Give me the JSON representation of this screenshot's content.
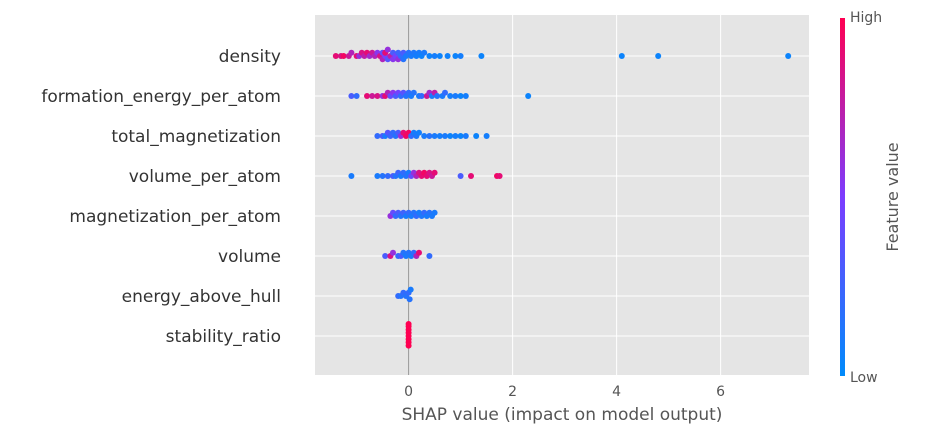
{
  "chart_data": {
    "type": "scatter",
    "subtype": "shap-beeswarm",
    "xlabel": "SHAP value (impact on model output)",
    "xlim": [
      -1.8,
      7.7
    ],
    "xticks": [
      0,
      2,
      4,
      6
    ],
    "grid": true,
    "colors": {
      "background": "#e5e5e5",
      "grid": "#ffffff",
      "low": "#008bfb",
      "high": "#ff0052",
      "zero_line": "#999999"
    },
    "colorbar": {
      "high_label": "High",
      "low_label": "Low",
      "title": "Feature value"
    },
    "features": [
      {
        "name": "density",
        "points": [
          [
            -1.4,
            0.9
          ],
          [
            -1.3,
            0.85
          ],
          [
            -1.25,
            0.95
          ],
          [
            -1.15,
            0.8
          ],
          [
            -1.1,
            0.7
          ],
          [
            -1.0,
            0.9
          ],
          [
            -0.95,
            0.6
          ],
          [
            -0.9,
            0.85
          ],
          [
            -0.85,
            0.75
          ],
          [
            -0.8,
            0.9
          ],
          [
            -0.75,
            0.65
          ],
          [
            -0.7,
            0.8
          ],
          [
            -0.65,
            0.7
          ],
          [
            -0.6,
            0.55
          ],
          [
            -0.55,
            0.85
          ],
          [
            -0.5,
            0.4
          ],
          [
            -0.5,
            0.7
          ],
          [
            -0.45,
            0.5
          ],
          [
            -0.45,
            0.9
          ],
          [
            -0.4,
            0.35
          ],
          [
            -0.4,
            0.6
          ],
          [
            -0.35,
            0.75
          ],
          [
            -0.3,
            0.3
          ],
          [
            -0.3,
            0.55
          ],
          [
            -0.25,
            0.45
          ],
          [
            -0.2,
            0.25
          ],
          [
            -0.2,
            0.6
          ],
          [
            -0.15,
            0.2
          ],
          [
            -0.1,
            0.3
          ],
          [
            -0.1,
            0.15
          ],
          [
            -0.05,
            0.1
          ],
          [
            0.0,
            0.15
          ],
          [
            0.05,
            0.1
          ],
          [
            0.1,
            0.12
          ],
          [
            0.15,
            0.08
          ],
          [
            0.2,
            0.1
          ],
          [
            0.25,
            0.05
          ],
          [
            0.3,
            0.1
          ],
          [
            0.4,
            0.05
          ],
          [
            0.5,
            0.08
          ],
          [
            0.6,
            0.05
          ],
          [
            0.75,
            0.06
          ],
          [
            0.9,
            0.05
          ],
          [
            1.0,
            0.08
          ],
          [
            1.4,
            0.05
          ],
          [
            4.1,
            0.05
          ],
          [
            4.8,
            0.05
          ],
          [
            7.3,
            0.05
          ]
        ]
      },
      {
        "name": "formation_energy_per_atom",
        "points": [
          [
            -1.1,
            0.3
          ],
          [
            -1.0,
            0.2
          ],
          [
            -0.8,
            0.9
          ],
          [
            -0.7,
            0.8
          ],
          [
            -0.6,
            0.85
          ],
          [
            -0.5,
            0.6
          ],
          [
            -0.45,
            0.9
          ],
          [
            -0.4,
            0.7
          ],
          [
            -0.35,
            0.4
          ],
          [
            -0.3,
            0.55
          ],
          [
            -0.25,
            0.3
          ],
          [
            -0.2,
            0.45
          ],
          [
            -0.15,
            0.2
          ],
          [
            -0.1,
            0.35
          ],
          [
            -0.05,
            0.15
          ],
          [
            0.0,
            0.2
          ],
          [
            0.05,
            0.1
          ],
          [
            0.1,
            0.15
          ],
          [
            0.2,
            0.1
          ],
          [
            0.25,
            0.2
          ],
          [
            0.35,
            0.8
          ],
          [
            0.4,
            0.65
          ],
          [
            0.45,
            0.1
          ],
          [
            0.5,
            0.75
          ],
          [
            0.55,
            0.15
          ],
          [
            0.65,
            0.1
          ],
          [
            0.7,
            0.2
          ],
          [
            0.8,
            0.08
          ],
          [
            0.9,
            0.1
          ],
          [
            1.0,
            0.05
          ],
          [
            1.1,
            0.08
          ],
          [
            2.3,
            0.05
          ]
        ]
      },
      {
        "name": "total_magnetization",
        "points": [
          [
            -0.6,
            0.2
          ],
          [
            -0.5,
            0.3
          ],
          [
            -0.45,
            0.1
          ],
          [
            -0.4,
            0.35
          ],
          [
            -0.35,
            0.25
          ],
          [
            -0.3,
            0.2
          ],
          [
            -0.25,
            0.15
          ],
          [
            -0.2,
            0.3
          ],
          [
            -0.15,
            0.6
          ],
          [
            -0.1,
            0.9
          ],
          [
            -0.05,
            0.95
          ],
          [
            0.0,
            0.95
          ],
          [
            0.05,
            0.2
          ],
          [
            0.1,
            0.1
          ],
          [
            0.15,
            0.12
          ],
          [
            0.2,
            0.08
          ],
          [
            0.3,
            0.1
          ],
          [
            0.4,
            0.15
          ],
          [
            0.5,
            0.1
          ],
          [
            0.6,
            0.08
          ],
          [
            0.7,
            0.1
          ],
          [
            0.8,
            0.05
          ],
          [
            0.9,
            0.08
          ],
          [
            1.0,
            0.05
          ],
          [
            1.1,
            0.1
          ],
          [
            1.3,
            0.05
          ],
          [
            1.5,
            0.08
          ]
        ]
      },
      {
        "name": "volume_per_atom",
        "points": [
          [
            -1.1,
            0.1
          ],
          [
            -0.6,
            0.1
          ],
          [
            -0.5,
            0.15
          ],
          [
            -0.4,
            0.2
          ],
          [
            -0.3,
            0.3
          ],
          [
            -0.25,
            0.15
          ],
          [
            -0.2,
            0.25
          ],
          [
            -0.15,
            0.1
          ],
          [
            -0.1,
            0.2
          ],
          [
            -0.05,
            0.15
          ],
          [
            0.0,
            0.1
          ],
          [
            0.05,
            0.4
          ],
          [
            0.1,
            0.6
          ],
          [
            0.15,
            0.7
          ],
          [
            0.2,
            0.85
          ],
          [
            0.25,
            0.9
          ],
          [
            0.3,
            0.95
          ],
          [
            0.35,
            0.9
          ],
          [
            0.4,
            0.85
          ],
          [
            0.45,
            0.8
          ],
          [
            0.5,
            0.9
          ],
          [
            1.0,
            0.3
          ],
          [
            1.2,
            0.9
          ],
          [
            1.7,
            0.95
          ],
          [
            1.75,
            0.9
          ]
        ]
      },
      {
        "name": "magnetization_per_atom",
        "points": [
          [
            -0.35,
            0.6
          ],
          [
            -0.3,
            0.4
          ],
          [
            -0.25,
            0.2
          ],
          [
            -0.2,
            0.3
          ],
          [
            -0.15,
            0.15
          ],
          [
            -0.1,
            0.25
          ],
          [
            -0.05,
            0.1
          ],
          [
            0.0,
            0.2
          ],
          [
            0.05,
            0.1
          ],
          [
            0.1,
            0.15
          ],
          [
            0.15,
            0.2
          ],
          [
            0.2,
            0.1
          ],
          [
            0.25,
            0.12
          ],
          [
            0.3,
            0.2
          ],
          [
            0.35,
            0.1
          ],
          [
            0.4,
            0.15
          ],
          [
            0.45,
            0.1
          ],
          [
            0.5,
            0.1
          ]
        ]
      },
      {
        "name": "volume",
        "points": [
          [
            -0.45,
            0.3
          ],
          [
            -0.35,
            0.85
          ],
          [
            -0.3,
            0.6
          ],
          [
            -0.2,
            0.2
          ],
          [
            -0.15,
            0.3
          ],
          [
            -0.1,
            0.15
          ],
          [
            -0.05,
            0.1
          ],
          [
            0.0,
            0.15
          ],
          [
            0.05,
            0.1
          ],
          [
            0.1,
            0.2
          ],
          [
            0.15,
            0.7
          ],
          [
            0.2,
            0.9
          ],
          [
            0.4,
            0.2
          ]
        ]
      },
      {
        "name": "energy_above_hull",
        "points": [
          [
            -0.2,
            0.2
          ],
          [
            -0.15,
            0.15
          ],
          [
            -0.1,
            0.2
          ],
          [
            -0.05,
            0.15
          ],
          [
            0.0,
            0.2
          ],
          [
            0.02,
            0.15
          ],
          [
            0.04,
            0.1
          ]
        ]
      },
      {
        "name": "stability_ratio",
        "points": [
          [
            0.0,
            1.0
          ],
          [
            0.0,
            1.0
          ],
          [
            0.0,
            1.0
          ],
          [
            0.0,
            1.0
          ],
          [
            0.0,
            1.0
          ],
          [
            0.0,
            1.0
          ],
          [
            0.0,
            1.0
          ],
          [
            0.0,
            1.0
          ]
        ]
      }
    ]
  }
}
